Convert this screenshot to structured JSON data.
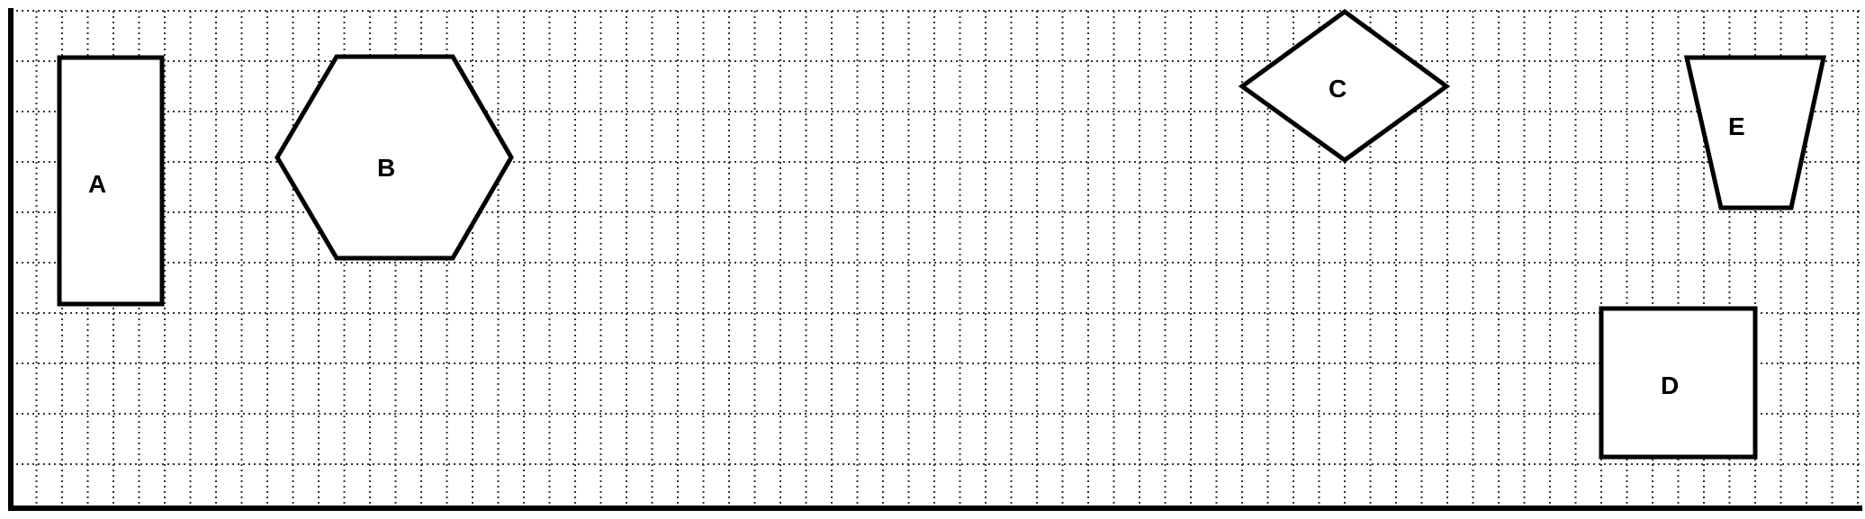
{
  "shapes": {
    "a": {
      "label": "A",
      "type": "rectangle"
    },
    "b": {
      "label": "B",
      "type": "hexagon"
    },
    "c": {
      "label": "C",
      "type": "rhombus"
    },
    "d": {
      "label": "D",
      "type": "square"
    },
    "e": {
      "label": "E",
      "type": "trapezoid"
    }
  },
  "colors": {
    "line": "#000000",
    "grid": "#333333",
    "background": "#ffffff"
  }
}
